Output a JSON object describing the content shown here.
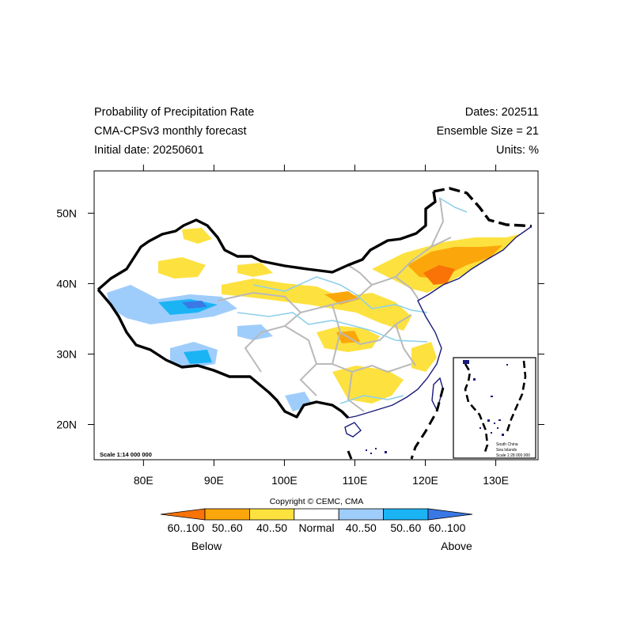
{
  "title": {
    "line1": "Probability of Precipitation Rate",
    "line2": "CMA-CPSv3 monthly forecast",
    "line3": "Initial date: 20250601"
  },
  "info": {
    "dates": "Dates: 202511",
    "ensemble": "Ensemble Size = 21",
    "units": "Units: %"
  },
  "axes": {
    "lon_ticks": [
      "80E",
      "90E",
      "100E",
      "110E",
      "120E",
      "130E"
    ],
    "lat_ticks": [
      "50N",
      "40N",
      "30N",
      "20N"
    ],
    "lon_range": [
      73,
      136
    ],
    "lat_range": [
      15,
      56
    ]
  },
  "map": {
    "scale": "Scale 1:14 000 000",
    "inset_title_1": "South China",
    "inset_title_2": "Sea Islands",
    "inset_scale": "Scale 1:28 000 000",
    "copyright": "Copyright © CEMC, CMA"
  },
  "legend": {
    "labels": [
      "60..100",
      "50..60",
      "40..50",
      "Normal",
      "40..50",
      "50..60",
      "60..100"
    ],
    "colors": [
      "#f97306",
      "#fba70b",
      "#fde13f",
      "#ffffff",
      "#9fcdfb",
      "#1ab4f5",
      "#3a78e6"
    ],
    "below": "Below",
    "above": "Above"
  }
}
